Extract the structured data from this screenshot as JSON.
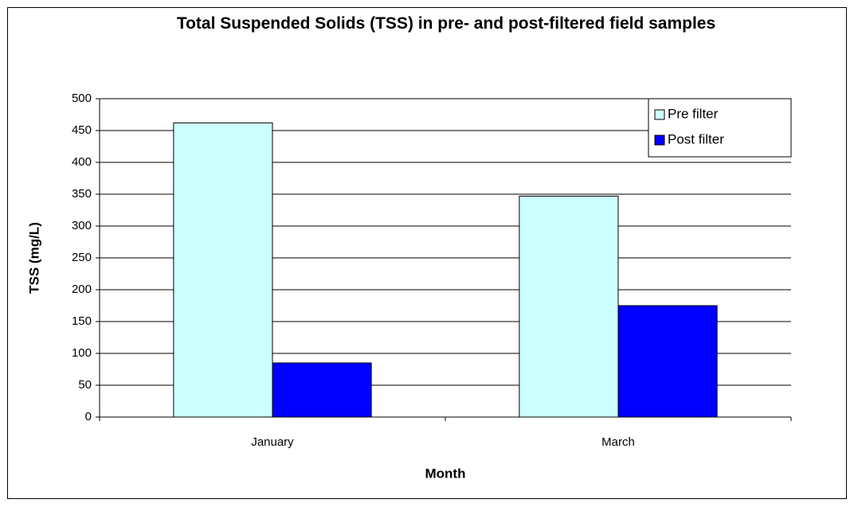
{
  "chart_data": {
    "type": "bar",
    "title": "Total Suspended Solids (TSS) in pre- and post-filtered field samples",
    "xlabel": "Month",
    "ylabel": "TSS (mg/L)",
    "categories": [
      "January",
      "March"
    ],
    "series": [
      {
        "name": "Pre filter",
        "color": "#ccffff",
        "values": [
          462,
          347
        ]
      },
      {
        "name": "Post filter",
        "color": "#0000ff",
        "values": [
          85,
          175
        ]
      }
    ],
    "ylim": [
      0,
      500
    ],
    "yticks": [
      0,
      50,
      100,
      150,
      200,
      250,
      300,
      350,
      400,
      450,
      500
    ],
    "grid": true,
    "legend": "top-right"
  }
}
